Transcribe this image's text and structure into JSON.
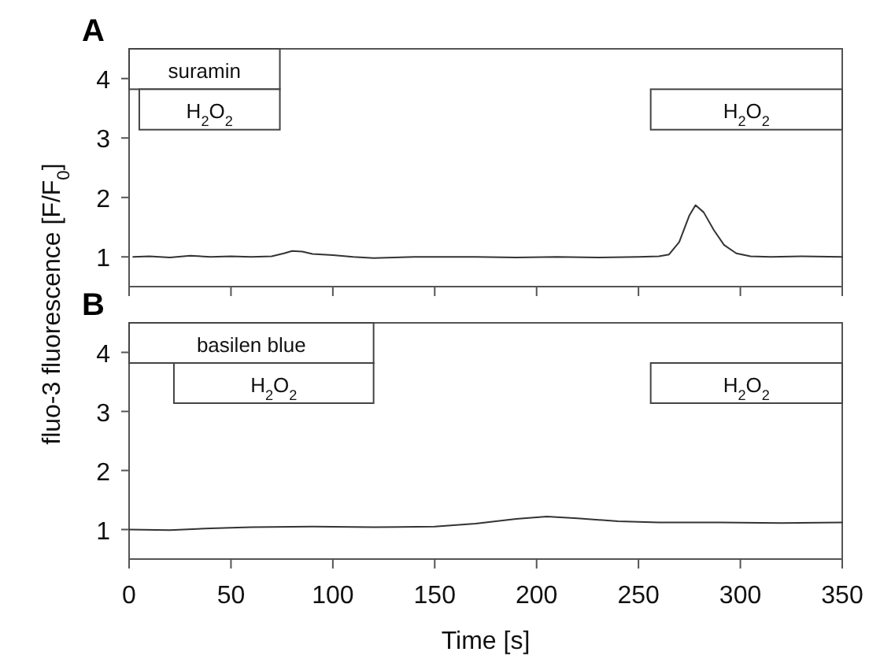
{
  "chart_data": [
    {
      "type": "line",
      "title": "A",
      "ylabel": "fluo-3 fluorescence [F/F$_{0}$]",
      "xlim": [
        0,
        350
      ],
      "xticks": [
        0,
        50,
        100,
        150,
        200,
        250,
        300,
        350
      ],
      "ylim": [
        0.5,
        4.5
      ],
      "yticks": [
        1,
        2,
        3,
        4
      ],
      "tick_labels": "y",
      "grid": false,
      "bands": [
        {
          "axis": "x",
          "from": 0,
          "to": 74,
          "label": "suramin"
        },
        {
          "axis": "x",
          "from": 5,
          "to": 74,
          "label": "H$_{2}$O$_{2}$"
        },
        {
          "axis": "x",
          "from": 256,
          "to": 350,
          "label": "H$_{2}$O$_{2}$"
        }
      ],
      "series": [
        {
          "color": "#333333",
          "x": [
            2,
            10,
            20,
            30,
            40,
            50,
            60,
            70,
            76,
            80,
            85,
            90,
            100,
            110,
            120,
            130,
            140,
            150,
            170,
            190,
            210,
            230,
            250,
            260,
            265,
            270,
            275,
            278,
            282,
            287,
            292,
            298,
            305,
            315,
            330,
            350
          ],
          "values": [
            1.0,
            1.01,
            0.99,
            1.02,
            1.0,
            1.01,
            1.0,
            1.01,
            1.06,
            1.1,
            1.09,
            1.05,
            1.03,
            1.0,
            0.98,
            0.99,
            1.0,
            1.0,
            1.0,
            0.99,
            1.0,
            0.99,
            1.0,
            1.01,
            1.04,
            1.25,
            1.7,
            1.87,
            1.75,
            1.45,
            1.2,
            1.06,
            1.01,
            1.0,
            1.01,
            1.0
          ]
        }
      ]
    },
    {
      "type": "line",
      "title": "B",
      "xlabel": "Time [s]",
      "xlim": [
        0,
        350
      ],
      "xticks": [
        0,
        50,
        100,
        150,
        200,
        250,
        300,
        350
      ],
      "ylim": [
        0.5,
        4.5
      ],
      "yticks": [
        1,
        2,
        3,
        4
      ],
      "grid": false,
      "bands": [
        {
          "axis": "x",
          "from": 0,
          "to": 120,
          "label": "basilen blue"
        },
        {
          "axis": "x",
          "from": 22,
          "to": 120,
          "label": "H$_{2}$O$_{2}$"
        },
        {
          "axis": "x",
          "from": 256,
          "to": 350,
          "label": "H$_{2}$O$_{2}$"
        }
      ],
      "series": [
        {
          "color": "#333333",
          "x": [
            0,
            20,
            40,
            60,
            90,
            120,
            150,
            170,
            190,
            205,
            220,
            240,
            260,
            290,
            320,
            350
          ],
          "values": [
            1.0,
            0.99,
            1.02,
            1.04,
            1.05,
            1.04,
            1.05,
            1.1,
            1.18,
            1.22,
            1.19,
            1.14,
            1.12,
            1.12,
            1.11,
            1.12
          ]
        }
      ]
    }
  ]
}
